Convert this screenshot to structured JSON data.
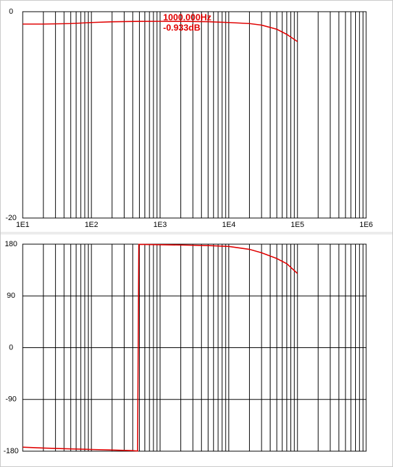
{
  "chart_data": [
    {
      "type": "line",
      "log_x": true,
      "log_minor_grid": true,
      "ygrid": false,
      "color": "#e00000",
      "annotations": [
        "1000.000Hz",
        "-0.933dB"
      ],
      "xlim": [
        10,
        1000000
      ],
      "xticks": [
        {
          "value": 10,
          "label": "1E1"
        },
        {
          "value": 100,
          "label": "1E2"
        },
        {
          "value": 1000,
          "label": "1E3"
        },
        {
          "value": 10000,
          "label": "1E4"
        },
        {
          "value": 100000,
          "label": "1E5"
        },
        {
          "value": 1000000,
          "label": "1E6"
        }
      ],
      "ylim": [
        -20,
        0
      ],
      "yticks": [
        -20,
        0
      ],
      "x": [
        10,
        20,
        50,
        100,
        200,
        500,
        1000,
        2000,
        5000,
        10000,
        20000,
        30000,
        50000,
        70000,
        100000
      ],
      "values": [
        -1.2,
        -1.2,
        -1.15,
        -1.05,
        -0.98,
        -0.94,
        -0.933,
        -0.94,
        -0.97,
        -1.05,
        -1.15,
        -1.3,
        -1.7,
        -2.2,
        -2.9
      ]
    },
    {
      "type": "line",
      "log_x": true,
      "log_minor_grid": true,
      "ygrid": true,
      "color": "#e00000",
      "xlim": [
        10,
        1000000
      ],
      "xgrid": [
        10,
        100,
        1000,
        10000,
        100000,
        1000000
      ],
      "ylim": [
        -180,
        180
      ],
      "yticks": [
        -180,
        -90,
        0,
        90,
        180
      ],
      "x": [
        10,
        20,
        50,
        100,
        200,
        400,
        470,
        490,
        1000,
        2000,
        5000,
        10000,
        20000,
        30000,
        50000,
        70000,
        100000
      ],
      "values": [
        -173,
        -174.5,
        -176,
        -177,
        -178,
        -179,
        -179.7,
        179.6,
        179,
        178.5,
        177.5,
        176,
        171,
        165,
        155,
        146,
        129
      ]
    }
  ]
}
